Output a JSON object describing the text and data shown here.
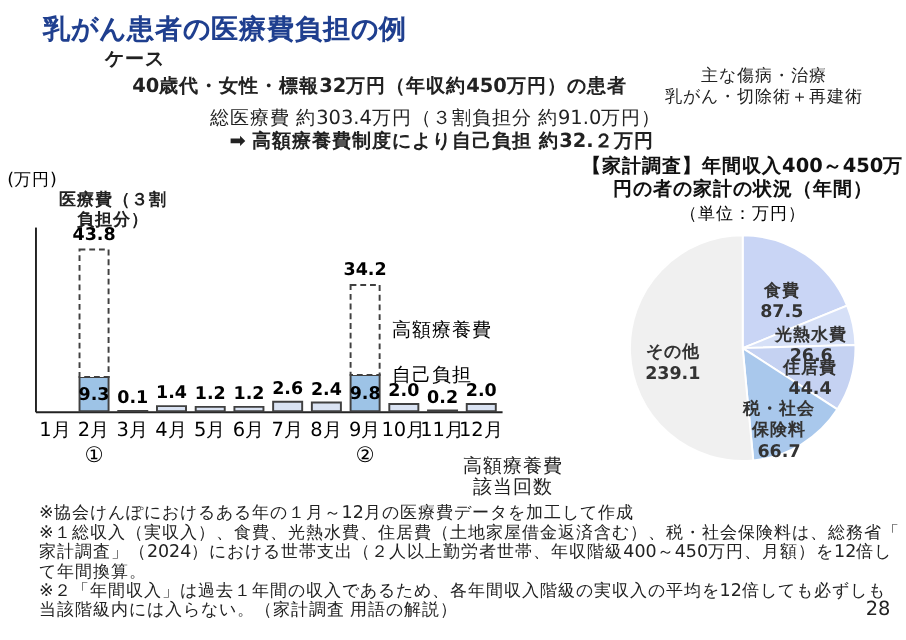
{
  "chart_data": [
    {
      "type": "bar",
      "title": "乳がん患者の医療費負担の例",
      "ylabel": "(万円)",
      "categories": [
        "1月",
        "2月",
        "3月",
        "4月",
        "5月",
        "6月",
        "7月",
        "8月",
        "9月",
        "10月",
        "11月",
        "12月"
      ],
      "stacked": true,
      "ylim": [
        0,
        50
      ],
      "tick_labels": "x",
      "grid": false,
      "legend": false,
      "series": [
        {
          "name": "自己負担",
          "colors": [
            "#dae3f3",
            "#9dc3e6",
            "#dae3f3",
            "#dae3f3",
            "#dae3f3",
            "#dae3f3",
            "#dae3f3",
            "#dae3f3",
            "#9dc3e6",
            "#dae3f3",
            "#dae3f3",
            "#dae3f3"
          ],
          "values": [
            null,
            9.3,
            0.1,
            1.4,
            1.2,
            1.2,
            2.6,
            2.4,
            9.8,
            2.0,
            0.2,
            2.0
          ],
          "value_labels": [
            null,
            "9.3",
            "0.1",
            "1.4",
            "1.2",
            "1.2",
            "2.6",
            "2.4",
            "9.8",
            "2.0",
            "0.2",
            "2.0"
          ]
        },
        {
          "name": "高額療養費",
          "color": "#ffffff",
          "line_style": "dashed",
          "values": [
            null,
            34.5,
            null,
            null,
            null,
            null,
            null,
            null,
            24.4,
            null,
            null,
            null
          ]
        }
      ],
      "totals": [
        null,
        "43.8",
        null,
        null,
        null,
        null,
        null,
        null,
        "34.2",
        null,
        null,
        null
      ],
      "annotations": [
        "ケース",
        "40歳代・女性・標報32万円（年収約450万円）の患者",
        "主な傷病・治療",
        "乳がん・切除術＋再建術",
        "総医療費 約303.4万円（３割負担分 約91.0万円）",
        "➡ 高額療養費制度により自己負担 約32.２万円",
        "医療費（３割負担分）",
        "①",
        "②",
        "高額療養費該当回数",
        "※協会けんぽにおけるある年の１月～12月の医療費データを加工して作成"
      ]
    },
    {
      "type": "pie",
      "title": "【家計調査】年間収入400～450万円の者の家計の状況（年間）",
      "subtitle": "（単位：万円）",
      "categories": [
        "食費",
        "光熱水費",
        "住居費",
        "税・社会保険料",
        "その他"
      ],
      "values": [
        87.5,
        26.6,
        44.4,
        66.7,
        239.1
      ],
      "colors": [
        "#c9d5f5",
        "#d6e0f7",
        "#c5d2f2",
        "#a9c8ec",
        "#f0f0f0"
      ],
      "data_labels": true,
      "legend": false,
      "annotations": [
        "※１総収入（実収入）、食費、光熱水費、住居費（土地家屋借金返済含む）、税・社会保険料は、総務省「家計調査」（2024）における世帯支出（２人以上勤労者世帯、年収階級400～450万円、月額）を12倍して年間換算。",
        "※２「年間収入」は過去１年間の収入であるため、各年間収入階級の実収入の平均を12倍しても必ずしも当該階級内には入らない。（家計調査 用語の解説）",
        "28"
      ]
    }
  ]
}
